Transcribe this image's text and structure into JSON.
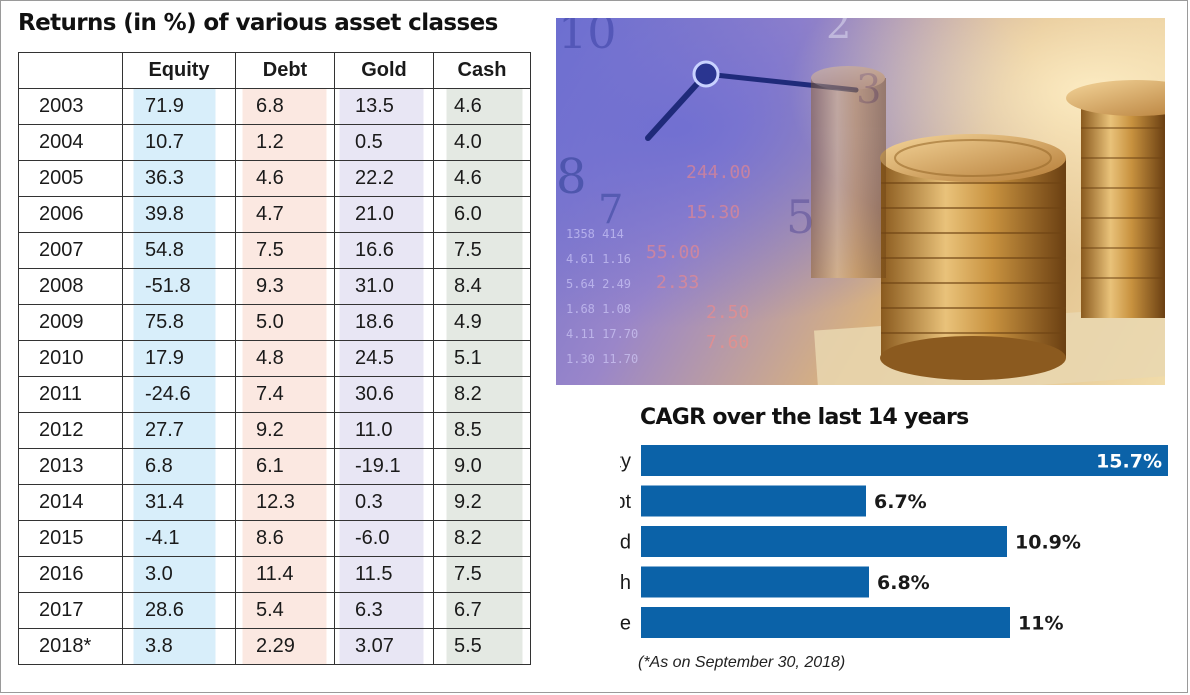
{
  "table": {
    "title": "Returns (in %) of various asset classes",
    "headers": [
      "",
      "Equity",
      "Debt",
      "Gold",
      "Cash"
    ],
    "rows": [
      [
        "2003",
        "71.9",
        "6.8",
        "13.5",
        "4.6"
      ],
      [
        "2004",
        "10.7",
        "1.2",
        "0.5",
        "4.0"
      ],
      [
        "2005",
        "36.3",
        "4.6",
        "22.2",
        "4.6"
      ],
      [
        "2006",
        "39.8",
        "4.7",
        "21.0",
        "6.0"
      ],
      [
        "2007",
        "54.8",
        "7.5",
        "16.6",
        "7.5"
      ],
      [
        "2008",
        "-51.8",
        "9.3",
        "31.0",
        "8.4"
      ],
      [
        "2009",
        "75.8",
        "5.0",
        "18.6",
        "4.9"
      ],
      [
        "2010",
        "17.9",
        "4.8",
        "24.5",
        "5.1"
      ],
      [
        "2011",
        "-24.6",
        "7.4",
        "30.6",
        "8.2"
      ],
      [
        "2012",
        "27.7",
        "9.2",
        "11.0",
        "8.5"
      ],
      [
        "2013",
        "6.8",
        "6.1",
        "-19.1",
        "9.0"
      ],
      [
        "2014",
        "31.4",
        "12.3",
        "0.3",
        "9.2"
      ],
      [
        "2015",
        "-4.1",
        "8.6",
        "-6.0",
        "8.2"
      ],
      [
        "2016",
        "3.0",
        "11.4",
        "11.5",
        "7.5"
      ],
      [
        "2017",
        "28.6",
        "5.4",
        "6.3",
        "6.7"
      ],
      [
        "2018*",
        "3.8",
        "2.29",
        "3.07",
        "5.5"
      ]
    ]
  },
  "chart_data": [
    {
      "type": "table",
      "title": "Returns (in %) of various asset classes",
      "columns": [
        "Equity",
        "Debt",
        "Gold",
        "Cash"
      ],
      "row_labels": [
        "2003",
        "2004",
        "2005",
        "2006",
        "2007",
        "2008",
        "2009",
        "2010",
        "2011",
        "2012",
        "2013",
        "2014",
        "2015",
        "2016",
        "2017",
        "2018*"
      ],
      "values": [
        [
          71.9,
          6.8,
          13.5,
          4.6
        ],
        [
          10.7,
          1.2,
          0.5,
          4.0
        ],
        [
          36.3,
          4.6,
          22.2,
          4.6
        ],
        [
          39.8,
          4.7,
          21.0,
          6.0
        ],
        [
          54.8,
          7.5,
          16.6,
          7.5
        ],
        [
          -51.8,
          9.3,
          31.0,
          8.4
        ],
        [
          75.8,
          5.0,
          18.6,
          4.9
        ],
        [
          17.9,
          4.8,
          24.5,
          5.1
        ],
        [
          -24.6,
          7.4,
          30.6,
          8.2
        ],
        [
          27.7,
          9.2,
          11.0,
          8.5
        ],
        [
          6.8,
          6.1,
          -19.1,
          9.0
        ],
        [
          31.4,
          12.3,
          0.3,
          9.2
        ],
        [
          -4.1,
          8.6,
          -6.0,
          8.2
        ],
        [
          3.0,
          11.4,
          11.5,
          7.5
        ],
        [
          28.6,
          5.4,
          6.3,
          6.7
        ],
        [
          3.8,
          2.29,
          3.07,
          5.5
        ]
      ]
    },
    {
      "type": "bar",
      "orientation": "horizontal",
      "title": "CAGR over the last 14 years",
      "categories": [
        "Equity",
        "Debt",
        "Gold",
        "Cash",
        "Average"
      ],
      "values": [
        15.7,
        6.7,
        10.9,
        6.8,
        11
      ],
      "labels": [
        "15.7%",
        "6.7%",
        "10.9%",
        "6.8%",
        "11%"
      ],
      "bar_color": "#0b62a8",
      "xlim": [
        0,
        15.7
      ],
      "grid": false,
      "note": "(*As on September 30, 2018)"
    }
  ]
}
